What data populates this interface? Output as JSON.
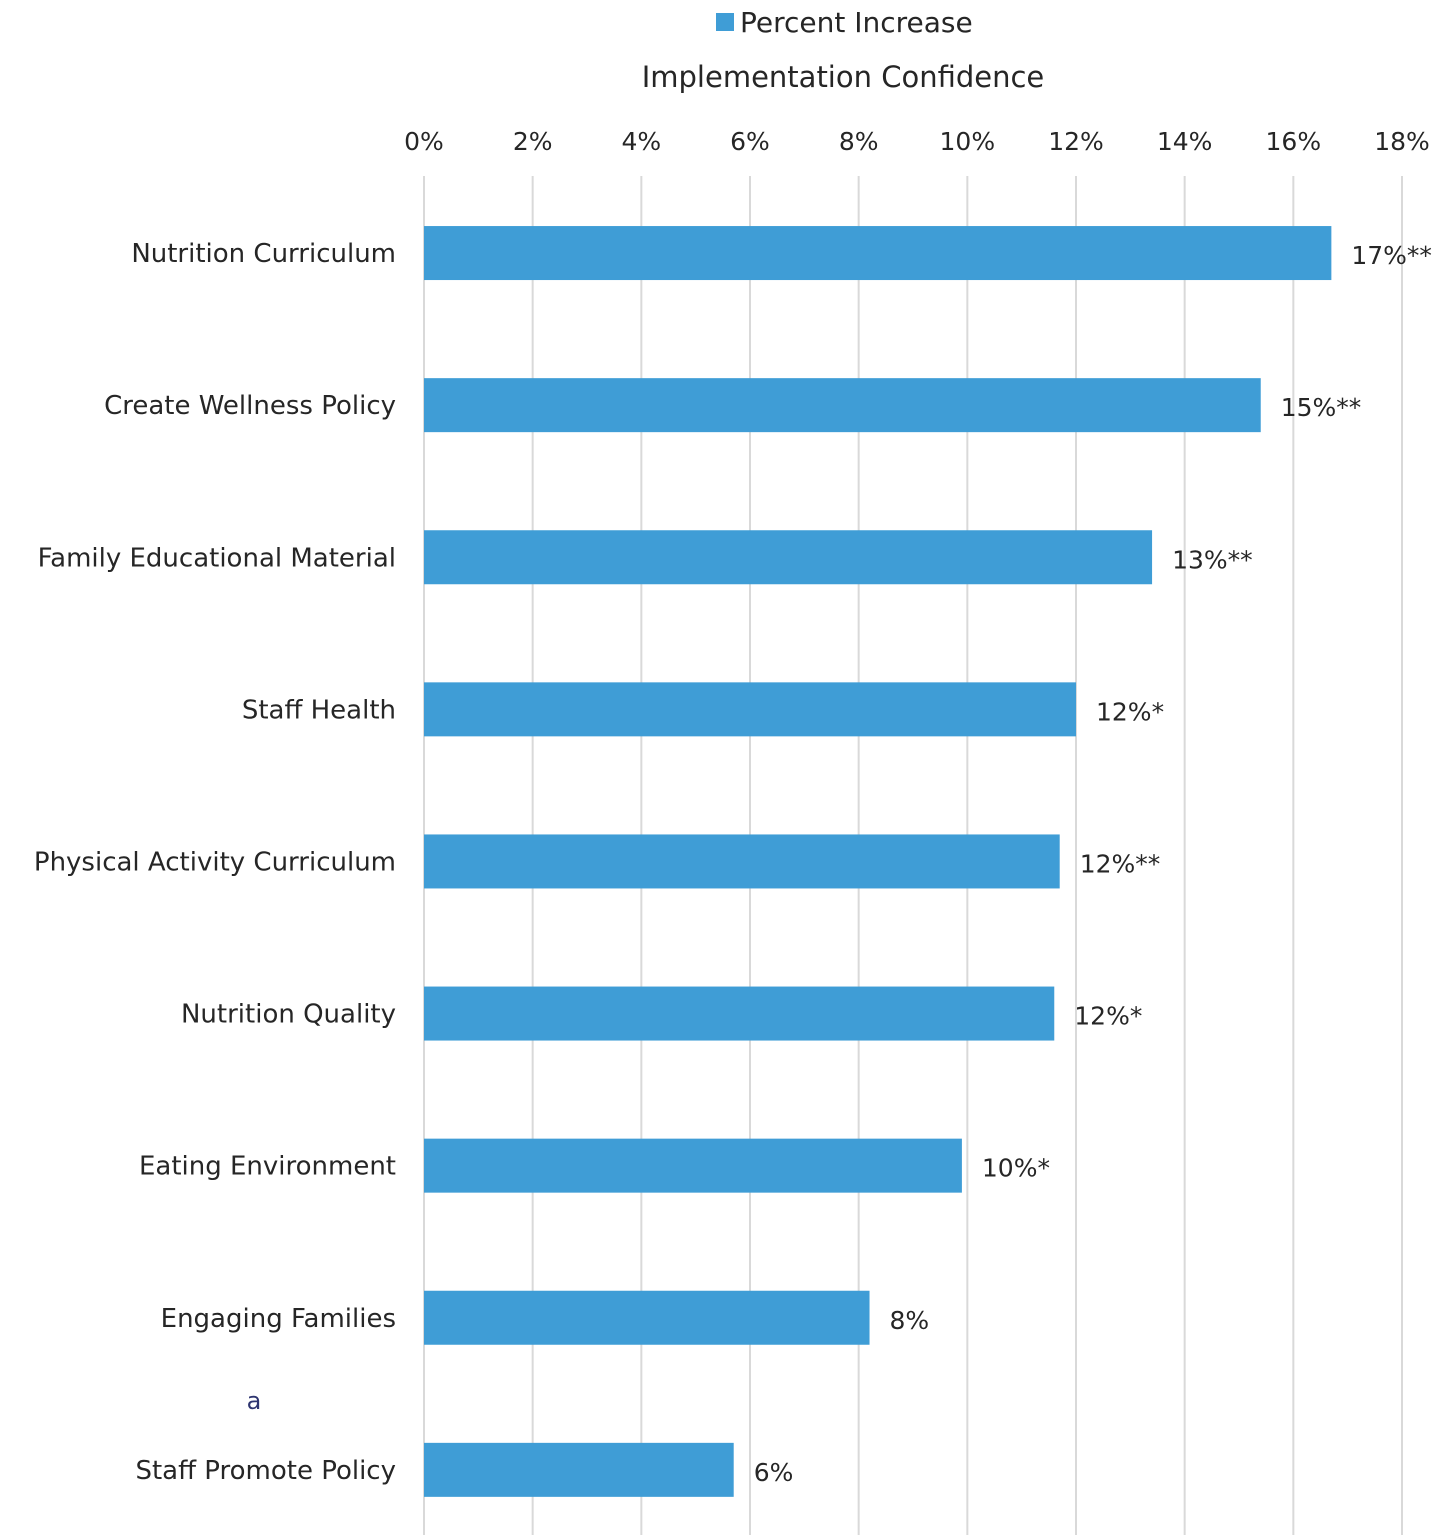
{
  "chart_data": {
    "type": "bar",
    "orientation": "horizontal",
    "title": "Implementation Confidence",
    "legend": {
      "entries": [
        "Percent Increase"
      ],
      "position": "top"
    },
    "categories": [
      "Nutrition Curriculum",
      "Create Wellness Policy",
      "Family Educational Material",
      "Staff Health",
      "Physical Activity Curriculum",
      "Nutrition Quality",
      "Eating Environment",
      "Engaging Families",
      "Staff Promote Policy"
    ],
    "series": [
      {
        "name": "Percent Increase",
        "color": "#3f9dd6",
        "values": [
          16.7,
          15.4,
          13.4,
          12.0,
          11.7,
          11.6,
          9.9,
          8.2,
          5.7
        ],
        "labels": [
          "17%**",
          "15%**",
          "13%**",
          "12%*",
          "12%**",
          "12%*",
          "10%*",
          "8%",
          "6%"
        ]
      }
    ],
    "xlim": [
      0,
      18
    ],
    "x_ticks": [
      "0%",
      "2%",
      "4%",
      "6%",
      "8%",
      "10%",
      "12%",
      "14%",
      "16%",
      "18%"
    ],
    "axis_position": "top",
    "grid": true,
    "annotations": [
      "a"
    ]
  },
  "colors": {
    "bar": "#3f9dd6",
    "grid": "#d9d9d9",
    "text": "#262626",
    "annotation": "#2e3570"
  }
}
